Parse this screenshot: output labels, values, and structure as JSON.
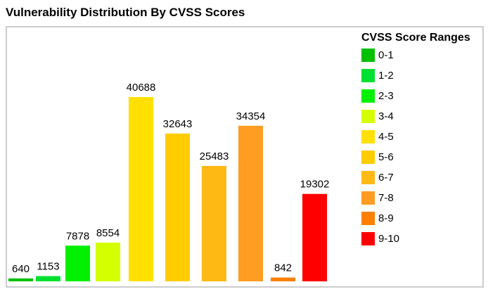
{
  "chart_data": {
    "type": "bar",
    "title": "Vulnerability Distribution By CVSS Scores",
    "legend_title": "CVSS Score Ranges",
    "legend_position": "right",
    "categories": [
      "0-1",
      "1-2",
      "2-3",
      "3-4",
      "4-5",
      "5-6",
      "6-7",
      "7-8",
      "8-9",
      "9-10"
    ],
    "values": [
      640,
      1153,
      7878,
      8554,
      40688,
      32643,
      25483,
      34354,
      842,
      19302
    ],
    "colors": [
      "#00c000",
      "#00e030",
      "#00f000",
      "#d4ff00",
      "#ffe000",
      "#ffcc00",
      "#ffb915",
      "#ff9c22",
      "#ff7f00",
      "#ff0000"
    ],
    "ylim": [
      0,
      40688
    ],
    "grid": false,
    "xlabel": "",
    "ylabel": ""
  }
}
